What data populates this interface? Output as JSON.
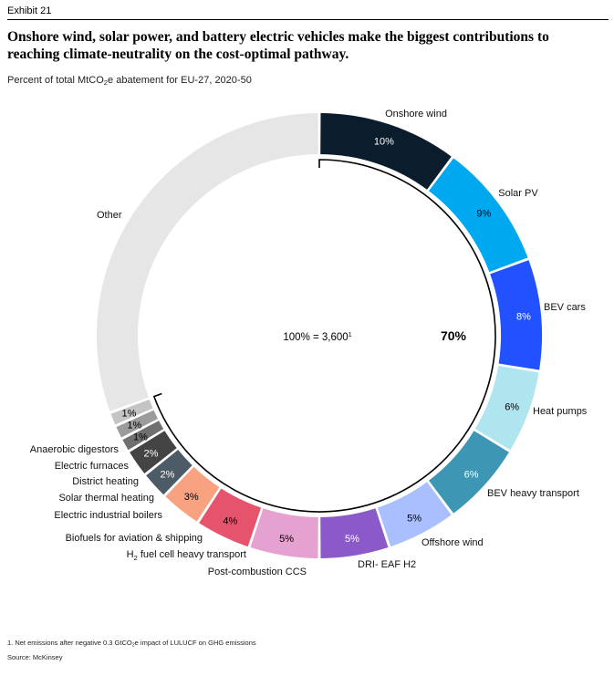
{
  "header": {
    "exhibit": "Exhibit 21",
    "title": "Onshore wind, solar power, and battery electric vehicles make the biggest contributions to reaching climate-neutrality on the cost-optimal pathway.",
    "subtitle_parts": [
      "Percent of total MtCO",
      "2",
      "e abatement for EU-27, 2020-50"
    ]
  },
  "chart_data": {
    "type": "pie",
    "donut": true,
    "center_label_parts": [
      "100% = 3,600",
      "1"
    ],
    "bracket_total_label": "70%",
    "slices": [
      {
        "name": "Onshore wind",
        "value": 10,
        "label": "10%",
        "color": "#0b1c2c",
        "label_color": "#ffffff"
      },
      {
        "name": "Solar PV",
        "value": 9,
        "label": "9%",
        "color": "#00a8f0",
        "label_color": "#000000"
      },
      {
        "name": "BEV cars",
        "value": 8,
        "label": "8%",
        "color": "#2251ff",
        "label_color": "#ffffff"
      },
      {
        "name": "Heat pumps",
        "value": 6,
        "label": "6%",
        "color": "#aee5ef",
        "label_color": "#000000"
      },
      {
        "name": "BEV heavy transport",
        "value": 6,
        "label": "6%",
        "color": "#3c96b4",
        "label_color": "#ffffff"
      },
      {
        "name": "Offshore wind",
        "value": 5,
        "label": "5%",
        "color": "#aabfff",
        "label_color": "#000000"
      },
      {
        "name": "DRI- EAF H2",
        "value": 5,
        "label": "5%",
        "color": "#8c5ac8",
        "label_color": "#ffffff"
      },
      {
        "name": "Post-combustion CCS",
        "value": 5,
        "label": "5%",
        "color": "#e5a1cf",
        "label_color": "#000000"
      },
      {
        "name": "H2 fuel cell heavy transport",
        "name_parts": [
          "H",
          "2",
          " fuel cell heavy transport"
        ],
        "value": 4,
        "label": "4%",
        "color": "#e5546c",
        "label_color": "#000000"
      },
      {
        "name": "Biofuels for aviation & shipping",
        "value": 3,
        "label": "3%",
        "color": "#f8a282",
        "label_color": "#000000"
      },
      {
        "name": "Electric industrial boilers",
        "value": 2,
        "label": "2%",
        "color": "#4d5b66",
        "label_color": "#ffffff"
      },
      {
        "name": "Solar thermal heating",
        "value": 2,
        "label": "2%",
        "color": "#444444",
        "label_color": "#ffffff"
      },
      {
        "name": "District heating",
        "value": 1,
        "label": "1%",
        "color": "#707070",
        "label_color": "#000000"
      },
      {
        "name": "Electric furnaces",
        "value": 1,
        "label": "1%",
        "color": "#9c9c9c",
        "label_color": "#000000"
      },
      {
        "name": "Anaerobic digestors",
        "value": 1,
        "label": "1%",
        "color": "#c4c4c4",
        "label_color": "#000000"
      },
      {
        "name": "Other",
        "value": 30,
        "label": "",
        "color": "#e6e6e6",
        "label_color": "#000000"
      }
    ]
  },
  "footnotes": {
    "note_parts": [
      "1. Net emissions after negative 0.3 GtCO",
      "2",
      "e impact of LULUCF on GHG emissions"
    ],
    "source": "Source: McKinsey"
  }
}
